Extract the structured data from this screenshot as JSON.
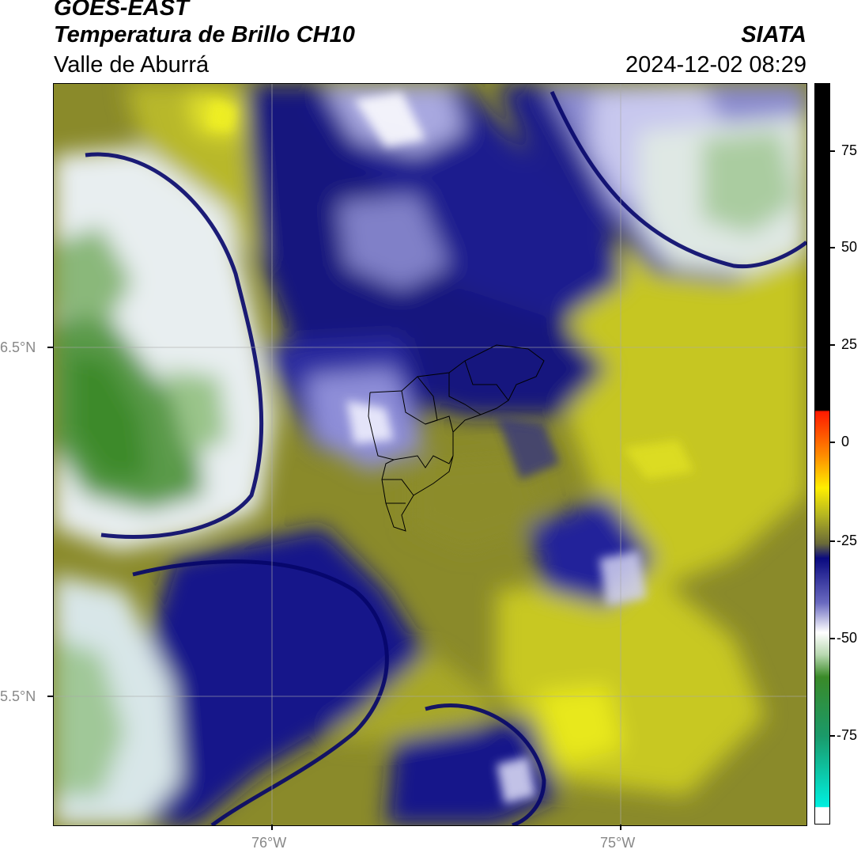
{
  "header": {
    "satellite": "GOES-EAST",
    "product": "Temperatura de Brillo CH10",
    "region": "Valle de Aburrá",
    "organization": "SIATA",
    "datetime": "2024-12-02 08:29"
  },
  "map": {
    "lat_labels": [
      "6.5°N",
      "5.5°N"
    ],
    "lon_labels": [
      "76°W",
      "75°W"
    ],
    "lat_range": [
      5.14,
      7.25
    ],
    "lon_range": [
      -76.62,
      -74.47
    ],
    "gridlines": true
  },
  "colorbar": {
    "ticks": [
      "75",
      "50",
      "25",
      "0",
      "-25",
      "-50",
      "-75"
    ],
    "range": [
      -95,
      92
    ],
    "colors": {
      "black": "#000000",
      "red": "#ff2a00",
      "orange": "#ff9a00",
      "yellow": "#ffee00",
      "olive": "#8a8a1e",
      "navy": "#0a0a80",
      "lavender": "#9a9ad6",
      "white": "#ffffff",
      "green": "#3a8a28",
      "cyan": "#10e0d8"
    }
  }
}
